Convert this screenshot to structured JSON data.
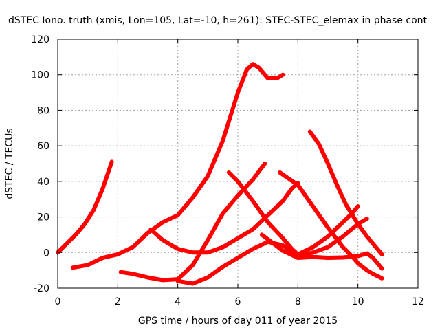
{
  "chart_data": {
    "type": "line",
    "title": "dSTEC Iono. truth (xmis, Lon=105, Lat=-10, h=261): STEC-STEC_elemax in phase cont",
    "xlabel": "GPS time / hours of day 011 of year 2015",
    "ylabel": "dSTEC  / TECUs",
    "xlim": [
      0,
      12
    ],
    "ylim": [
      -20,
      120
    ],
    "xticks": [
      0,
      2,
      4,
      6,
      8,
      10,
      12
    ],
    "yticks": [
      -20,
      0,
      20,
      40,
      60,
      80,
      100,
      120
    ],
    "grid": true,
    "line_color": "#ff0000",
    "series": [
      {
        "x": [
          0.0,
          0.3,
          0.6,
          0.9,
          1.2,
          1.5,
          1.8
        ],
        "y": [
          0,
          5,
          10,
          16,
          24,
          36,
          51
        ]
      },
      {
        "x": [
          0.5,
          1.0,
          1.5,
          2.0,
          2.5,
          3.0,
          3.5,
          4.0,
          4.5,
          5.0,
          5.5,
          6.0,
          6.3,
          6.5,
          6.7,
          7.0,
          7.3,
          7.5
        ],
        "y": [
          -8.5,
          -7,
          -3,
          -1,
          3,
          11,
          17,
          21,
          31,
          43,
          63,
          90,
          103,
          106,
          104,
          98,
          98,
          100
        ]
      },
      {
        "x": [
          2.1,
          2.5,
          3.0,
          3.5,
          4.0,
          4.5,
          5.0,
          5.5,
          6.0,
          6.5,
          6.9
        ],
        "y": [
          -11,
          -12,
          -14,
          -15.5,
          -15,
          -7,
          7,
          22,
          32,
          41,
          50
        ]
      },
      {
        "x": [
          3.1,
          3.5,
          4.0,
          4.5,
          5.0,
          5.5,
          6.0,
          6.5,
          7.0,
          7.5,
          7.8,
          8.0
        ],
        "y": [
          13,
          7,
          2,
          0,
          0,
          3,
          8,
          13,
          21,
          29,
          36,
          39
        ]
      },
      {
        "x": [
          4.0,
          4.5,
          5.0,
          5.5,
          6.0,
          6.5,
          7.0,
          7.5,
          8.0,
          8.5,
          9.0,
          9.5,
          10.0,
          10.3
        ],
        "y": [
          -16,
          -17.5,
          -14,
          -8,
          -3,
          2,
          6,
          4,
          -2,
          0,
          3,
          9,
          16,
          19
        ]
      },
      {
        "x": [
          5.7,
          6.0,
          6.5,
          7.0,
          7.5,
          7.8,
          8.0,
          8.5,
          9.0,
          9.5,
          9.8,
          10.0
        ],
        "y": [
          45,
          40,
          29,
          17,
          8,
          2,
          -1,
          3,
          9,
          17,
          22,
          26
        ]
      },
      {
        "x": [
          6.8,
          7.5,
          8.0,
          8.5,
          9.0,
          9.5,
          10.0,
          10.3,
          10.5,
          10.8
        ],
        "y": [
          10,
          1,
          -3,
          -2.5,
          -3,
          -2.8,
          -2,
          -0.5,
          -3,
          -9
        ]
      },
      {
        "x": [
          7.4,
          8.0,
          8.5,
          9.0,
          9.5,
          9.8,
          10.0,
          10.3,
          10.5,
          10.8
        ],
        "y": [
          45,
          38,
          26,
          14,
          3,
          -2,
          -6,
          -10,
          -12,
          -14.5
        ]
      },
      {
        "x": [
          8.4,
          8.7,
          9.0,
          9.3,
          9.6,
          10.0,
          10.3,
          10.8
        ],
        "y": [
          68,
          61,
          50,
          38,
          27,
          16,
          9,
          -1
        ]
      }
    ]
  }
}
